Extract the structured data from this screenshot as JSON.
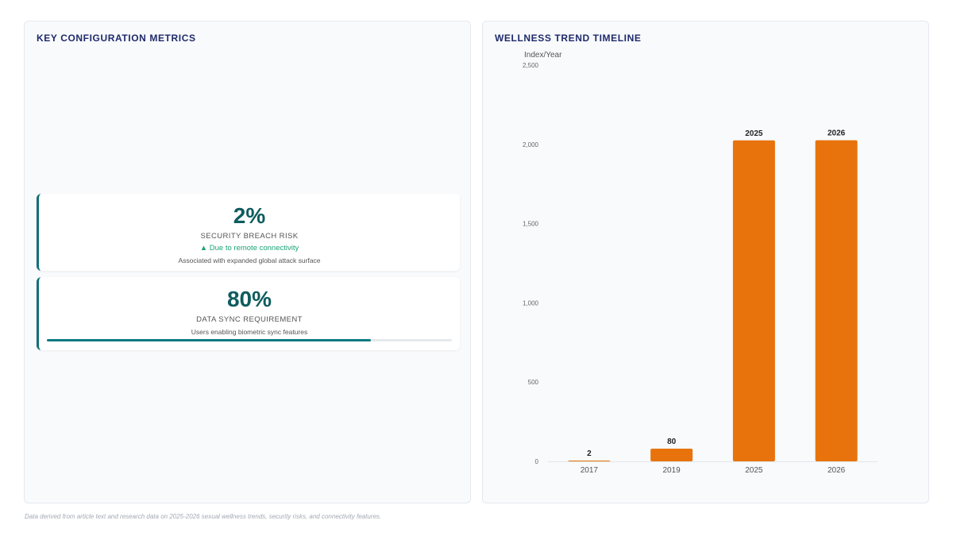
{
  "left_panel": {
    "title": "KEY CONFIGURATION METRICS",
    "cards": [
      {
        "value": "2%",
        "label": "SECURITY BREACH RISK",
        "trend": "▲ Due to remote connectivity",
        "note": "Associated with expanded global attack surface"
      },
      {
        "value": "80%",
        "label": "DATA SYNC REQUIREMENT",
        "note": "Users enabling biometric sync features",
        "progress": 0.8
      }
    ]
  },
  "right_panel": {
    "title": "WELLNESS TREND TIMELINE"
  },
  "chart_data": {
    "type": "bar",
    "title": "",
    "xlabel": "",
    "ylabel": "Index/Year",
    "categories": [
      "2017",
      "2019",
      "2025",
      "2026"
    ],
    "values": [
      2,
      80,
      2025,
      2026
    ],
    "data_labels": [
      "2",
      "80",
      "2025",
      "2026"
    ],
    "ylim": [
      0,
      2500
    ],
    "yticks": [
      0,
      500,
      1000,
      1500,
      2000,
      2500
    ],
    "ytick_labels": [
      "0",
      "500",
      "1,000",
      "1,500",
      "2,000",
      "2,500"
    ],
    "bar_color": "#e8730c",
    "grid": false
  },
  "footer": "Data derived from article text and research data on 2025-2026 sexual wellness trends, security risks, and connectivity features."
}
